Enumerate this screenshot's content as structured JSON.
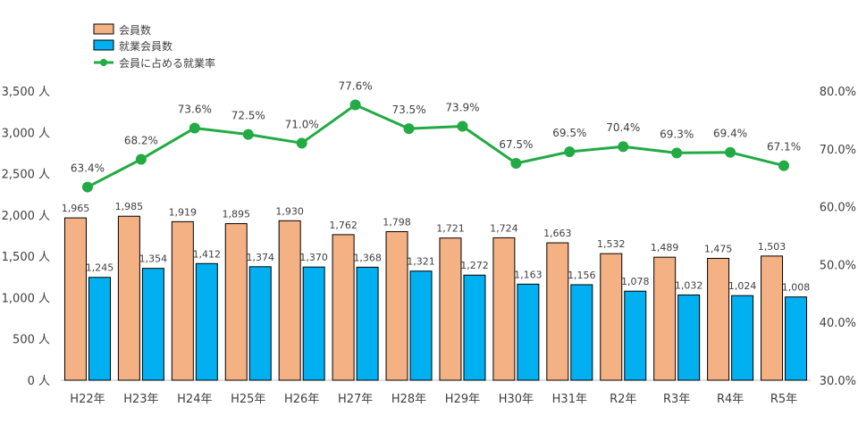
{
  "chart_data": {
    "type": "bar",
    "categories": [
      "H22年",
      "H23年",
      "H24年",
      "H25年",
      "H26年",
      "H27年",
      "H28年",
      "H29年",
      "H30年",
      "H31年",
      "R2年",
      "R3年",
      "R4年",
      "R5年"
    ],
    "series": [
      {
        "name": "会員数",
        "type": "bar",
        "axis": "left",
        "color": "#F4B183",
        "values": [
          1965,
          1985,
          1919,
          1895,
          1930,
          1762,
          1798,
          1721,
          1724,
          1663,
          1532,
          1489,
          1475,
          1503
        ],
        "labels": [
          "1,965",
          "1,985",
          "1,919",
          "1,895",
          "1,930",
          "1,762",
          "1,798",
          "1,721",
          "1,724",
          "1,663",
          "1,532",
          "1,489",
          "1,475",
          "1,503"
        ]
      },
      {
        "name": "就業会員数",
        "type": "bar",
        "axis": "left",
        "color": "#00B0F0",
        "values": [
          1245,
          1354,
          1412,
          1374,
          1370,
          1368,
          1321,
          1272,
          1163,
          1156,
          1078,
          1032,
          1024,
          1008
        ],
        "labels": [
          "1,245",
          "1,354",
          "1,412",
          "1,374",
          "1,370",
          "1,368",
          "1,321",
          "1,272",
          "1,163",
          "1,156",
          "1,078",
          "1,032",
          "1,024",
          "1,008"
        ]
      },
      {
        "name": "会員に占める就業率",
        "type": "line",
        "axis": "right",
        "color": "#22AA44",
        "values": [
          63.4,
          68.2,
          73.6,
          72.5,
          71.0,
          77.6,
          73.5,
          73.9,
          67.5,
          69.5,
          70.4,
          69.3,
          69.4,
          67.1
        ],
        "labels": [
          "63.4%",
          "68.2%",
          "73.6%",
          "72.5%",
          "71.0%",
          "77.6%",
          "73.5%",
          "73.9%",
          "67.5%",
          "69.5%",
          "70.4%",
          "69.3%",
          "69.4%",
          "67.1%"
        ]
      }
    ],
    "y_left": {
      "min": 0,
      "max": 3500,
      "ticks": [
        0,
        500,
        1000,
        1500,
        2000,
        2500,
        3000,
        3500
      ],
      "tick_labels": [
        "0 人",
        "500 人",
        "1,000 人",
        "1,500 人",
        "2,000 人",
        "2,500 人",
        "3,000 人",
        "3,500 人"
      ]
    },
    "y_right": {
      "min": 30,
      "max": 80,
      "ticks": [
        30,
        40,
        50,
        60,
        70,
        80
      ],
      "tick_labels": [
        "30.0%",
        "40.0%",
        "50.0%",
        "60.0%",
        "70.0%",
        "80.0%"
      ]
    },
    "grid": false,
    "legend_position": "top-left",
    "title": "",
    "xlabel": "",
    "ylabel": ""
  }
}
